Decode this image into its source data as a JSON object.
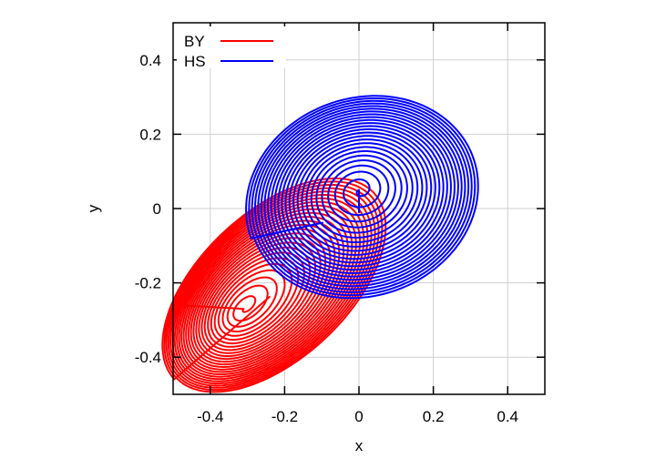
{
  "chart_data": {
    "type": "line",
    "title": "",
    "xlabel": "x",
    "ylabel": "y",
    "xlim": [
      -0.5,
      0.5
    ],
    "ylim": [
      -0.5,
      0.5
    ],
    "xticks": [
      -0.4,
      -0.2,
      0,
      0.2,
      0.4
    ],
    "yticks": [
      -0.4,
      -0.2,
      0,
      0.2,
      0.4
    ],
    "xtick_labels": [
      "-0.4",
      "-0.2",
      "0",
      "0.2",
      "0.4"
    ],
    "ytick_labels": [
      "-0.4",
      "-0.2",
      "0",
      "0.2",
      "0.4"
    ],
    "grid": true,
    "legend_position": "top-left",
    "series": [
      {
        "name": "BY",
        "color": "#ff0000",
        "start": [
          -0.49,
          -0.26
        ],
        "center": [
          -0.31,
          -0.27
        ],
        "final": [
          -0.07,
          -0.09
        ],
        "outer_semi_axes": [
          0.37,
          0.2
        ],
        "tilt_deg": 43,
        "turns": 26
      },
      {
        "name": "HS",
        "color": "#0000ff",
        "start": [
          0.0,
          -0.01
        ],
        "center": [
          0.0,
          0.05
        ],
        "final": [
          0.03,
          -0.01
        ],
        "outer_semi_axes": [
          0.32,
          0.27
        ],
        "tilt_deg": 20,
        "turns": 24
      }
    ]
  }
}
